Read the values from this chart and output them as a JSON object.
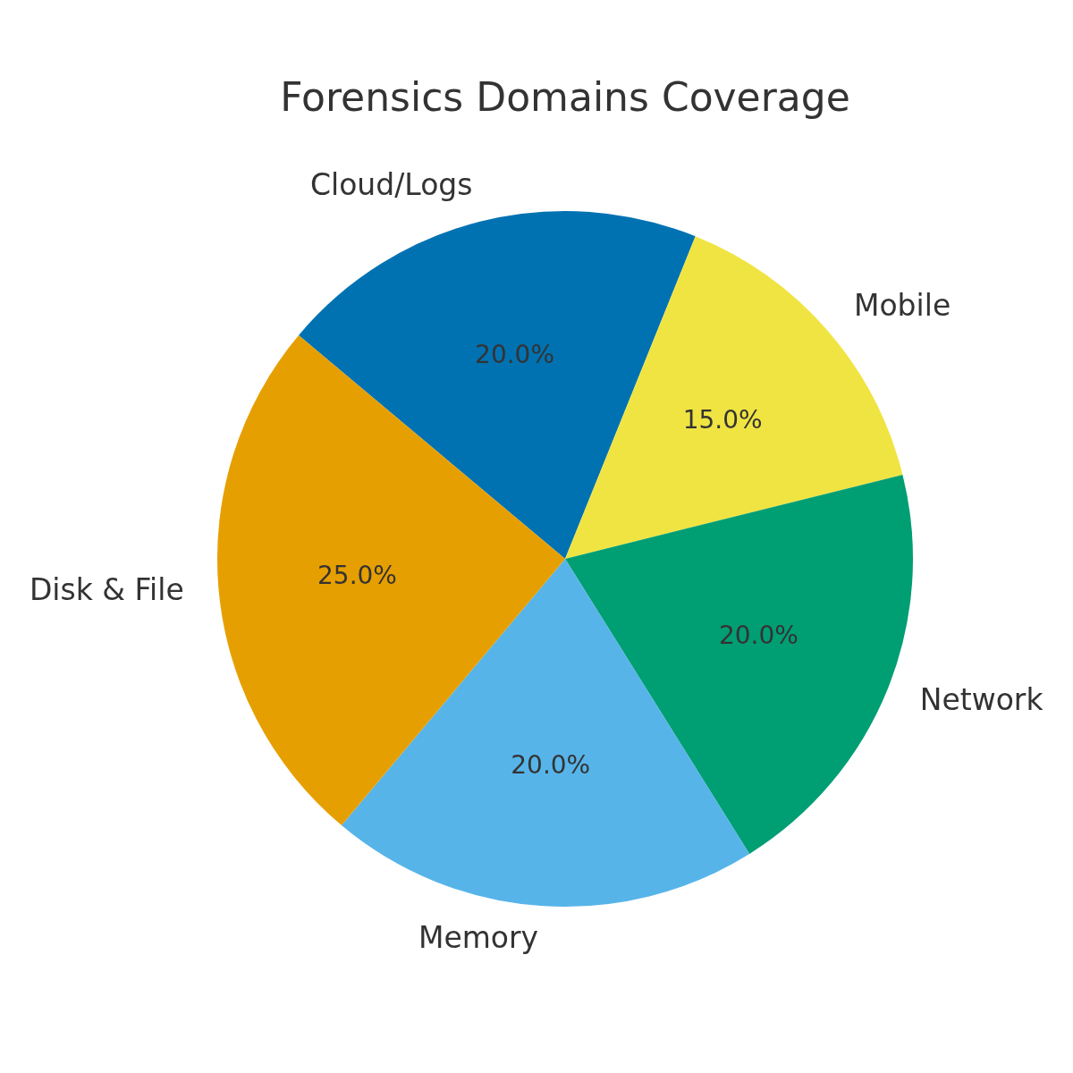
{
  "chart_data": {
    "type": "pie",
    "title": "Forensics Domains Coverage",
    "categories": [
      "Cloud/Logs",
      "Mobile",
      "Network",
      "Memory",
      "Disk & File"
    ],
    "values": [
      20,
      15,
      20,
      20,
      25
    ],
    "colors": [
      "#0072b2",
      "#f0e442",
      "#009e73",
      "#56b4e9",
      "#e69f00"
    ],
    "value_labels": [
      "20.0%",
      "15.0%",
      "20.0%",
      "20.0%",
      "25.0%"
    ]
  }
}
